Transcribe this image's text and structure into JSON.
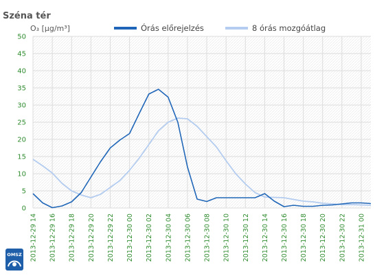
{
  "chart_data": {
    "type": "line",
    "title": "Széna tér",
    "ylabel": "O₃  [µg/m³]",
    "ylim": [
      0,
      50
    ],
    "yticks": [
      0,
      5,
      10,
      15,
      20,
      25,
      30,
      35,
      40,
      45,
      50
    ],
    "grid": true,
    "legend_placement": "top",
    "x": [
      "2013-12-29 14",
      "2013-12-29 15",
      "2013-12-29 16",
      "2013-12-29 17",
      "2013-12-29 18",
      "2013-12-29 19",
      "2013-12-29 20",
      "2013-12-29 21",
      "2013-12-29 22",
      "2013-12-29 23",
      "2013-12-30 00",
      "2013-12-30 01",
      "2013-12-30 02",
      "2013-12-30 03",
      "2013-12-30 04",
      "2013-12-30 05",
      "2013-12-30 06",
      "2013-12-30 07",
      "2013-12-30 08",
      "2013-12-30 09",
      "2013-12-30 10",
      "2013-12-30 11",
      "2013-12-30 12",
      "2013-12-30 13",
      "2013-12-30 14",
      "2013-12-30 15",
      "2013-12-30 16",
      "2013-12-30 17",
      "2013-12-30 18",
      "2013-12-30 19",
      "2013-12-30 20",
      "2013-12-30 21",
      "2013-12-30 22",
      "2013-12-30 23",
      "2013-12-31 00",
      "2013-12-31 01"
    ],
    "xtick_labels": [
      "2013-12-29 14",
      "2013-12-29 16",
      "2013-12-29 18",
      "2013-12-29 20",
      "2013-12-29 22",
      "2013-12-30 00",
      "2013-12-30 02",
      "2013-12-30 04",
      "2013-12-30 06",
      "2013-12-30 08",
      "2013-12-30 10",
      "2013-12-30 12",
      "2013-12-30 14",
      "2013-12-30 16",
      "2013-12-30 18",
      "2013-12-30 20",
      "2013-12-30 22",
      "2013-12-31 00"
    ],
    "series": [
      {
        "name": "Órás előrejelzés",
        "color": "#1f66b8",
        "values": [
          4.2,
          1.5,
          0.1,
          0.6,
          1.8,
          4.5,
          9.0,
          13.5,
          17.5,
          19.8,
          21.7,
          27.5,
          33.2,
          34.6,
          32.3,
          25.0,
          12.0,
          2.6,
          1.9,
          3.0,
          3.0,
          3.0,
          3.0,
          3.0,
          4.2,
          2.0,
          0.4,
          0.8,
          0.5,
          0.5,
          0.8,
          0.9,
          1.2,
          1.5,
          1.5,
          1.3
        ]
      },
      {
        "name": "8 órás mozgóátlag",
        "color": "#b3ccef",
        "values": [
          14.2,
          12.3,
          10.2,
          7.2,
          5.0,
          3.8,
          3.0,
          4.0,
          6.0,
          8.0,
          11.0,
          14.5,
          18.5,
          22.5,
          25.0,
          26.2,
          26.0,
          23.8,
          20.8,
          17.8,
          13.8,
          10.0,
          7.0,
          4.5,
          3.2,
          3.1,
          3.0,
          2.5,
          2.0,
          1.8,
          1.4,
          1.2,
          1.0,
          1.0,
          0.9,
          0.8
        ]
      }
    ]
  },
  "logo": {
    "text": "OMSZ"
  }
}
